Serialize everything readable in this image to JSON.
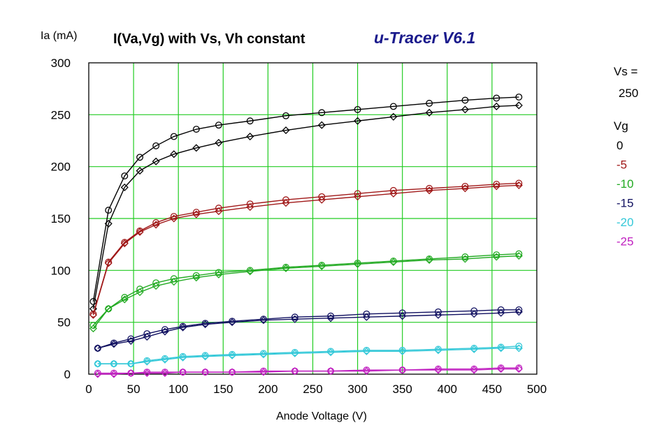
{
  "chart_data": {
    "type": "line",
    "title": "I(Va,Vg) with Vs, Vh constant",
    "brand": "u-Tracer V6.1",
    "ylabel": "Ia (mA)",
    "xlabel": "Anode Voltage (V)",
    "xlim": [
      0,
      500
    ],
    "ylim": [
      0,
      300
    ],
    "xticks": [
      "0",
      "50",
      "100",
      "150",
      "200",
      "250",
      "300",
      "350",
      "400",
      "450",
      "500"
    ],
    "yticks": [
      "0",
      "50",
      "100",
      "150",
      "200",
      "250",
      "300"
    ],
    "grid": true,
    "grid_color": "#22cc22",
    "legend": {
      "vs_label": "Vs =",
      "vs_value": "250",
      "vg_label": "Vg",
      "placement": "right"
    },
    "series": [
      {
        "name": "0",
        "color": "#000000",
        "a": [
          [
            5,
            70
          ],
          [
            22,
            158
          ],
          [
            40,
            191
          ],
          [
            57,
            209
          ],
          [
            75,
            220
          ],
          [
            95,
            229
          ],
          [
            120,
            236
          ],
          [
            145,
            240
          ],
          [
            180,
            244
          ],
          [
            220,
            249
          ],
          [
            260,
            252
          ],
          [
            300,
            255
          ],
          [
            340,
            258
          ],
          [
            380,
            261
          ],
          [
            420,
            264
          ],
          [
            455,
            266
          ],
          [
            480,
            267
          ]
        ],
        "b": [
          [
            5,
            63
          ],
          [
            22,
            145
          ],
          [
            40,
            180
          ],
          [
            57,
            196
          ],
          [
            75,
            205
          ],
          [
            95,
            212
          ],
          [
            120,
            218
          ],
          [
            145,
            223
          ],
          [
            180,
            229
          ],
          [
            220,
            235
          ],
          [
            260,
            240
          ],
          [
            300,
            244
          ],
          [
            340,
            248
          ],
          [
            380,
            252
          ],
          [
            420,
            255
          ],
          [
            455,
            258
          ],
          [
            480,
            259
          ]
        ]
      },
      {
        "name": "-5",
        "color": "#a01818",
        "a": [
          [
            5,
            58
          ],
          [
            22,
            108
          ],
          [
            40,
            127
          ],
          [
            57,
            138
          ],
          [
            75,
            146
          ],
          [
            95,
            152
          ],
          [
            120,
            156
          ],
          [
            145,
            160
          ],
          [
            180,
            164
          ],
          [
            220,
            168
          ],
          [
            260,
            171
          ],
          [
            300,
            174
          ],
          [
            340,
            177
          ],
          [
            380,
            179
          ],
          [
            420,
            181
          ],
          [
            455,
            183
          ],
          [
            480,
            184
          ]
        ],
        "b": [
          [
            5,
            57
          ],
          [
            22,
            107
          ],
          [
            40,
            126
          ],
          [
            57,
            137
          ],
          [
            75,
            144
          ],
          [
            95,
            150
          ],
          [
            120,
            154
          ],
          [
            145,
            157
          ],
          [
            180,
            161
          ],
          [
            220,
            165
          ],
          [
            260,
            168
          ],
          [
            300,
            171
          ],
          [
            340,
            174
          ],
          [
            380,
            177
          ],
          [
            420,
            179
          ],
          [
            455,
            181
          ],
          [
            480,
            182
          ]
        ]
      },
      {
        "name": "-10",
        "color": "#22aa22",
        "a": [
          [
            5,
            47
          ],
          [
            22,
            63
          ],
          [
            40,
            74
          ],
          [
            57,
            82
          ],
          [
            75,
            88
          ],
          [
            95,
            92
          ],
          [
            120,
            95
          ],
          [
            145,
            98
          ],
          [
            180,
            100
          ],
          [
            220,
            103
          ],
          [
            260,
            105
          ],
          [
            300,
            107
          ],
          [
            340,
            109
          ],
          [
            380,
            111
          ],
          [
            420,
            113
          ],
          [
            455,
            115
          ],
          [
            480,
            116
          ]
        ],
        "b": [
          [
            5,
            44
          ],
          [
            22,
            63
          ],
          [
            40,
            72
          ],
          [
            57,
            79
          ],
          [
            75,
            85
          ],
          [
            95,
            89
          ],
          [
            120,
            93
          ],
          [
            145,
            96
          ],
          [
            180,
            99
          ],
          [
            220,
            102
          ],
          [
            260,
            104
          ],
          [
            300,
            106
          ],
          [
            340,
            108
          ],
          [
            380,
            110
          ],
          [
            420,
            111
          ],
          [
            455,
            113
          ],
          [
            480,
            114
          ]
        ]
      },
      {
        "name": "-15",
        "color": "#101060",
        "a": [
          [
            10,
            25
          ],
          [
            28,
            30
          ],
          [
            47,
            34
          ],
          [
            65,
            39
          ],
          [
            85,
            43
          ],
          [
            105,
            46
          ],
          [
            130,
            49
          ],
          [
            160,
            51
          ],
          [
            195,
            53
          ],
          [
            230,
            55
          ],
          [
            270,
            56
          ],
          [
            310,
            58
          ],
          [
            350,
            59
          ],
          [
            390,
            60
          ],
          [
            430,
            61
          ],
          [
            460,
            62
          ],
          [
            480,
            62
          ]
        ],
        "b": [
          [
            10,
            25
          ],
          [
            28,
            29
          ],
          [
            47,
            32
          ],
          [
            65,
            36
          ],
          [
            85,
            41
          ],
          [
            105,
            45
          ],
          [
            130,
            48
          ],
          [
            160,
            50
          ],
          [
            195,
            52
          ],
          [
            230,
            53
          ],
          [
            270,
            54
          ],
          [
            310,
            55
          ],
          [
            350,
            56
          ],
          [
            390,
            57
          ],
          [
            430,
            58
          ],
          [
            460,
            59
          ],
          [
            480,
            60
          ]
        ]
      },
      {
        "name": "-20",
        "color": "#33c8d8",
        "a": [
          [
            10,
            10
          ],
          [
            28,
            10
          ],
          [
            47,
            10
          ],
          [
            65,
            13
          ],
          [
            85,
            15
          ],
          [
            105,
            17
          ],
          [
            130,
            18
          ],
          [
            160,
            19
          ],
          [
            195,
            20
          ],
          [
            230,
            21
          ],
          [
            270,
            22
          ],
          [
            310,
            23
          ],
          [
            350,
            23
          ],
          [
            390,
            24
          ],
          [
            430,
            25
          ],
          [
            460,
            26
          ],
          [
            480,
            27
          ]
        ],
        "b": [
          [
            10,
            10
          ],
          [
            28,
            10
          ],
          [
            47,
            10
          ],
          [
            65,
            12
          ],
          [
            85,
            14
          ],
          [
            105,
            16
          ],
          [
            130,
            17
          ],
          [
            160,
            18
          ],
          [
            195,
            19
          ],
          [
            230,
            20
          ],
          [
            270,
            21
          ],
          [
            310,
            22
          ],
          [
            350,
            22
          ],
          [
            390,
            23
          ],
          [
            430,
            24
          ],
          [
            460,
            25
          ],
          [
            480,
            25
          ]
        ]
      },
      {
        "name": "-25",
        "color": "#c020c0",
        "a": [
          [
            10,
            1
          ],
          [
            28,
            1
          ],
          [
            47,
            1
          ],
          [
            65,
            2
          ],
          [
            85,
            2
          ],
          [
            105,
            2
          ],
          [
            130,
            2
          ],
          [
            160,
            2
          ],
          [
            195,
            3
          ],
          [
            230,
            3
          ],
          [
            270,
            3
          ],
          [
            310,
            4
          ],
          [
            350,
            4
          ],
          [
            390,
            5
          ],
          [
            430,
            5
          ],
          [
            460,
            6
          ],
          [
            480,
            6
          ]
        ],
        "b": [
          [
            10,
            0
          ],
          [
            28,
            0
          ],
          [
            47,
            1
          ],
          [
            65,
            1
          ],
          [
            85,
            1
          ],
          [
            105,
            2
          ],
          [
            130,
            2
          ],
          [
            160,
            2
          ],
          [
            195,
            2
          ],
          [
            230,
            3
          ],
          [
            270,
            3
          ],
          [
            310,
            3
          ],
          [
            350,
            4
          ],
          [
            390,
            4
          ],
          [
            430,
            4
          ],
          [
            460,
            5
          ],
          [
            480,
            5
          ]
        ]
      }
    ]
  }
}
